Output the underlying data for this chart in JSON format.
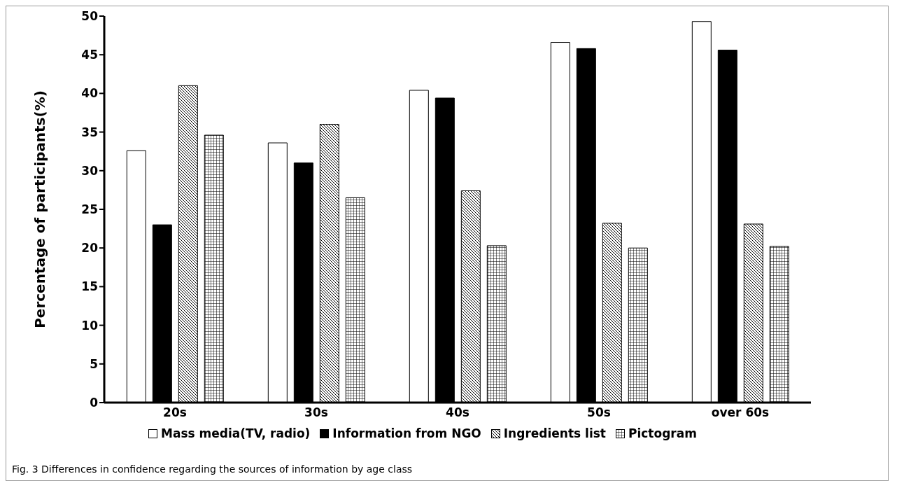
{
  "chart_data": {
    "type": "bar",
    "ylabel": "Percentage of participants(%)",
    "categories": [
      "20s",
      "30s",
      "40s",
      "50s",
      "over 60s"
    ],
    "series": [
      {
        "name": "Mass media(TV, radio)",
        "color": "#ffffff",
        "values": [
          32.6,
          33.6,
          40.4,
          46.6,
          49.3
        ]
      },
      {
        "name": "Information from NGO",
        "color": "#000000",
        "values": [
          23,
          31,
          39.4,
          45.8,
          45.6
        ]
      },
      {
        "name": "Ingredients list",
        "color": "#000000",
        "values": [
          41,
          36,
          27.4,
          23.2,
          23.1
        ]
      },
      {
        "name": "Pictogram",
        "color": "#000000",
        "values": [
          34.6,
          26.5,
          20.3,
          20,
          20.2
        ]
      }
    ],
    "ylim": [
      0,
      50
    ],
    "yticks": [
      0,
      5,
      10,
      15,
      20,
      25,
      30,
      35,
      40,
      45,
      50
    ],
    "grid": false,
    "legend": "bottom",
    "annotations": [
      "Fig. 3  Differences in confidence regarding the sources of information by age class"
    ]
  }
}
